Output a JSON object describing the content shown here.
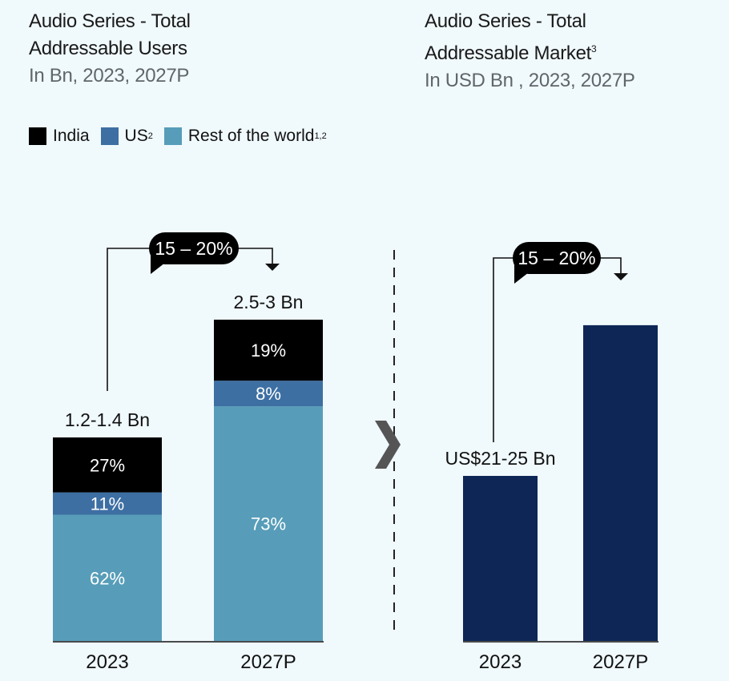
{
  "colors": {
    "india": "#000000",
    "us": "#3d6fa3",
    "rest_of_world": "#579db9",
    "market": "#0e2656",
    "background": "#f0f9fc",
    "chevron": "#555555"
  },
  "left_panel": {
    "title_line1": "Audio Series - Total",
    "title_line2": "Addressable Users",
    "subtitle": "In Bn, 2023, 2027P",
    "legend": [
      {
        "label": "India",
        "sup": ""
      },
      {
        "label": "US",
        "sup": "2"
      },
      {
        "label": "Rest of the world",
        "sup": "1,2"
      }
    ],
    "cagr": "15 – 20%"
  },
  "right_panel": {
    "title_line1": "Audio Series - Total",
    "title_line2": "Addressable Market",
    "title_sup": "3",
    "subtitle": "In USD Bn , 2023, 2027P",
    "cagr": "15 – 20%"
  },
  "chart_data": [
    {
      "type": "bar",
      "stacked": true,
      "title": "Audio Series - Total Addressable Users",
      "subtitle": "In Bn, 2023, 2027P",
      "categories": [
        "2023",
        "2027P"
      ],
      "totals_label": [
        "1.2-1.4 Bn",
        "2.5-3 Bn"
      ],
      "totals_mid": [
        1.3,
        2.75
      ],
      "series": [
        {
          "name": "Rest of the world",
          "values": [
            62,
            73
          ],
          "labels": [
            "62%",
            "73%"
          ]
        },
        {
          "name": "US",
          "values": [
            11,
            8
          ],
          "labels": [
            "11%",
            "8%"
          ]
        },
        {
          "name": "India",
          "values": [
            27,
            19
          ],
          "labels": [
            "27%",
            "19%"
          ]
        }
      ],
      "unit": "share of total (%)",
      "annotation": "CAGR 15 – 20%",
      "legend_position": "top-left",
      "grid": false
    },
    {
      "type": "bar",
      "title": "Audio Series - Total Addressable Market",
      "subtitle": "In USD Bn , 2023, 2027P",
      "categories": [
        "2023",
        "2027P"
      ],
      "values": [
        23,
        44
      ],
      "value_labels": [
        "US$21-25 Bn",
        ""
      ],
      "annotation": "CAGR 15 – 20%",
      "grid": false
    }
  ]
}
